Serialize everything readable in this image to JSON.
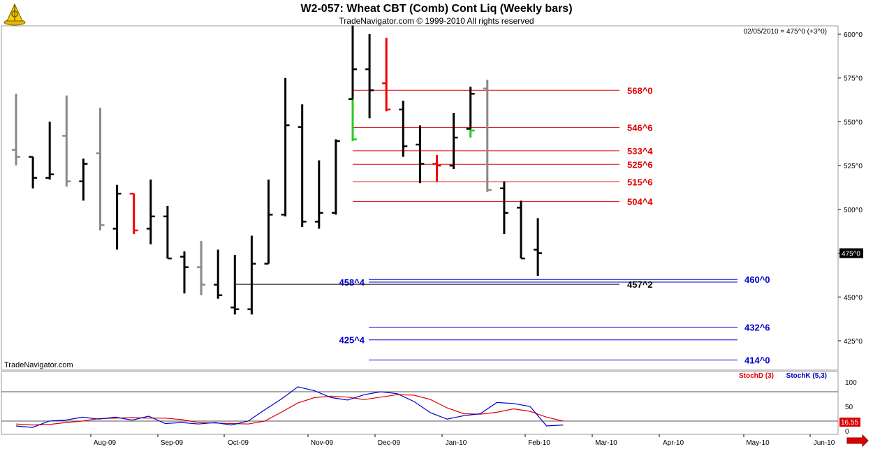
{
  "header": {
    "title": "W2-057:  Wheat CBT (Comb) Cont Liq  (Weekly bars)",
    "subtitle": "TradeNavigator.com © 1999-2010 All rights reserved",
    "last_quote": "02/05/2010 = 475^0 (+3^0)",
    "watermark": "TradeNavigator.com"
  },
  "colors": {
    "up": "#000000",
    "down_red": "#ee0000",
    "green": "#22cc22",
    "gray": "#888888",
    "resistance": "#dd0000",
    "support": "#0000cc",
    "stoch_d": "#dd0000",
    "stoch_k": "#0000cc"
  },
  "chart_data": [
    {
      "type": "ohlc",
      "title": "W2-057:  Wheat CBT (Comb) Cont Liq  (Weekly bars)",
      "ylim": [
        405,
        607
      ],
      "y_ticks": [
        600,
        575,
        550,
        525,
        500,
        475,
        450,
        425
      ],
      "y_tick_labels": [
        "600^0",
        "575^0",
        "550^0",
        "525^0",
        "500^0",
        "475^0",
        "450^0",
        "425^0"
      ],
      "x_labels": [
        "Aug-09",
        "Sep-09",
        "Oct-09",
        "Nov-09",
        "Dec-09",
        "Jan-10",
        "Feb-10",
        "Mar-10",
        "Apr-10",
        "May-10",
        "Jun-10"
      ],
      "last_price_label": "475^0",
      "bars": [
        {
          "date": "2009-07-03",
          "o": 534,
          "h": 566,
          "l": 525,
          "c": 530,
          "color": "gray"
        },
        {
          "date": "2009-07-10",
          "o": 530,
          "h": 530,
          "l": 512,
          "c": 518,
          "color": "black"
        },
        {
          "date": "2009-07-17",
          "o": 518,
          "h": 550,
          "l": 517,
          "c": 520,
          "color": "black"
        },
        {
          "date": "2009-07-24",
          "o": 542,
          "h": 565,
          "l": 513,
          "c": 516,
          "color": "gray"
        },
        {
          "date": "2009-07-31",
          "o": 516,
          "h": 529,
          "l": 505,
          "c": 526,
          "color": "black"
        },
        {
          "date": "2009-08-07",
          "o": 532,
          "h": 558,
          "l": 488,
          "c": 491,
          "color": "gray"
        },
        {
          "date": "2009-08-14",
          "o": 489,
          "h": 514,
          "l": 477,
          "c": 509,
          "color": "black"
        },
        {
          "date": "2009-08-21",
          "o": 509,
          "h": 509,
          "l": 486,
          "c": 488,
          "color": "red"
        },
        {
          "date": "2009-08-28",
          "o": 489,
          "h": 517,
          "l": 480,
          "c": 496,
          "color": "black"
        },
        {
          "date": "2009-09-04",
          "o": 496,
          "h": 502,
          "l": 472,
          "c": 472,
          "color": "black"
        },
        {
          "date": "2009-09-11",
          "o": 473,
          "h": 476,
          "l": 452,
          "c": 467,
          "color": "black"
        },
        {
          "date": "2009-09-18",
          "o": 467,
          "h": 482,
          "l": 451,
          "c": 457,
          "color": "gray"
        },
        {
          "date": "2009-09-25",
          "o": 457,
          "h": 477,
          "l": 449,
          "c": 451,
          "color": "black"
        },
        {
          "date": "2009-10-02",
          "o": 444,
          "h": 474,
          "l": 440,
          "c": 443,
          "color": "black"
        },
        {
          "date": "2009-10-09",
          "o": 443,
          "h": 485,
          "l": 440,
          "c": 469,
          "color": "black"
        },
        {
          "date": "2009-10-16",
          "o": 469,
          "h": 517,
          "l": 469,
          "c": 497,
          "color": "black"
        },
        {
          "date": "2009-10-23",
          "o": 497,
          "h": 575,
          "l": 496,
          "c": 548,
          "color": "black"
        },
        {
          "date": "2009-10-30",
          "o": 547,
          "h": 560,
          "l": 490,
          "c": 493,
          "color": "black"
        },
        {
          "date": "2009-11-06",
          "o": 493,
          "h": 528,
          "l": 489,
          "c": 498,
          "color": "black"
        },
        {
          "date": "2009-11-13",
          "o": 498,
          "h": 540,
          "l": 497,
          "c": 539,
          "color": "black"
        },
        {
          "date": "2009-11-20",
          "o": 563,
          "h": 563,
          "l": 539,
          "c": 540,
          "color": "green"
        },
        {
          "date": "2009-11-20b",
          "o": 563,
          "h": 605,
          "l": 563,
          "c": 580,
          "color": "black"
        },
        {
          "date": "2009-11-27",
          "o": 580,
          "h": 600,
          "l": 552,
          "c": 568,
          "color": "black"
        },
        {
          "date": "2009-12-04",
          "o": 572,
          "h": 598,
          "l": 556,
          "c": 557,
          "color": "red"
        },
        {
          "date": "2009-12-11",
          "o": 557,
          "h": 562,
          "l": 530,
          "c": 536,
          "color": "black"
        },
        {
          "date": "2009-12-18",
          "o": 537,
          "h": 548,
          "l": 515,
          "c": 526,
          "color": "black"
        },
        {
          "date": "2009-12-25",
          "o": 526,
          "h": 531,
          "l": 516,
          "c": 525,
          "color": "red"
        },
        {
          "date": "2010-01-01",
          "o": 525,
          "h": 555,
          "l": 523,
          "c": 541,
          "color": "black"
        },
        {
          "date": "2010-01-08",
          "o": 546,
          "h": 546,
          "l": 541,
          "c": 545,
          "color": "green"
        },
        {
          "date": "2010-01-08b",
          "o": 546,
          "h": 570,
          "l": 546,
          "c": 566,
          "color": "black"
        },
        {
          "date": "2010-01-15",
          "o": 569,
          "h": 574,
          "l": 510,
          "c": 511,
          "color": "gray"
        },
        {
          "date": "2010-01-22",
          "o": 512,
          "h": 516,
          "l": 486,
          "c": 498,
          "color": "black"
        },
        {
          "date": "2010-01-29",
          "o": 501,
          "h": 505,
          "l": 472,
          "c": 472,
          "color": "black"
        },
        {
          "date": "2010-02-05",
          "o": 477,
          "h": 495,
          "l": 462,
          "c": 475,
          "color": "black"
        }
      ],
      "resistance_levels": [
        {
          "value": 568,
          "label": "568^0"
        },
        {
          "value": 546.75,
          "label": "546^6"
        },
        {
          "value": 533.5,
          "label": "533^4"
        },
        {
          "value": 525.75,
          "label": "525^6"
        },
        {
          "value": 515.75,
          "label": "515^6"
        },
        {
          "value": 504.5,
          "label": "504^4"
        }
      ],
      "support_levels": [
        {
          "value": 460,
          "label": "460^0",
          "label_left": null
        },
        {
          "value": 458.5,
          "label": null,
          "label_left": "458^4"
        },
        {
          "value": 432.75,
          "label": "432^6",
          "label_left": null
        },
        {
          "value": 425.5,
          "label": null,
          "label_left": "425^4"
        },
        {
          "value": 414,
          "label": "414^0",
          "label_left": null
        }
      ],
      "other_levels": [
        {
          "value": 457.25,
          "label": "457^2"
        }
      ]
    },
    {
      "type": "line",
      "title": "Stochastic",
      "ylim": [
        0,
        100
      ],
      "y_ticks": [
        100,
        50,
        0
      ],
      "guide_lines": [
        80,
        20
      ],
      "series": [
        {
          "name": "StochD (3)",
          "color": "red",
          "values": [
            14,
            12,
            13,
            17,
            20,
            25,
            26,
            27,
            26,
            26,
            23,
            17,
            16,
            15,
            14,
            20,
            38,
            57,
            68,
            71,
            69,
            64,
            69,
            74,
            73,
            64,
            47,
            35,
            34,
            38,
            45,
            40,
            28,
            20
          ]
        },
        {
          "name": "StochK (5,3)",
          "color": "blue",
          "values": [
            10,
            7,
            20,
            22,
            28,
            24,
            28,
            22,
            30,
            15,
            17,
            14,
            17,
            12,
            20,
            43,
            65,
            90,
            82,
            68,
            63,
            74,
            80,
            76,
            60,
            37,
            24,
            31,
            35,
            58,
            56,
            50,
            10,
            12
          ]
        }
      ],
      "legend": [
        "StochD (3)",
        "StochK (5,3)"
      ],
      "last_value_label": "16.55"
    }
  ]
}
